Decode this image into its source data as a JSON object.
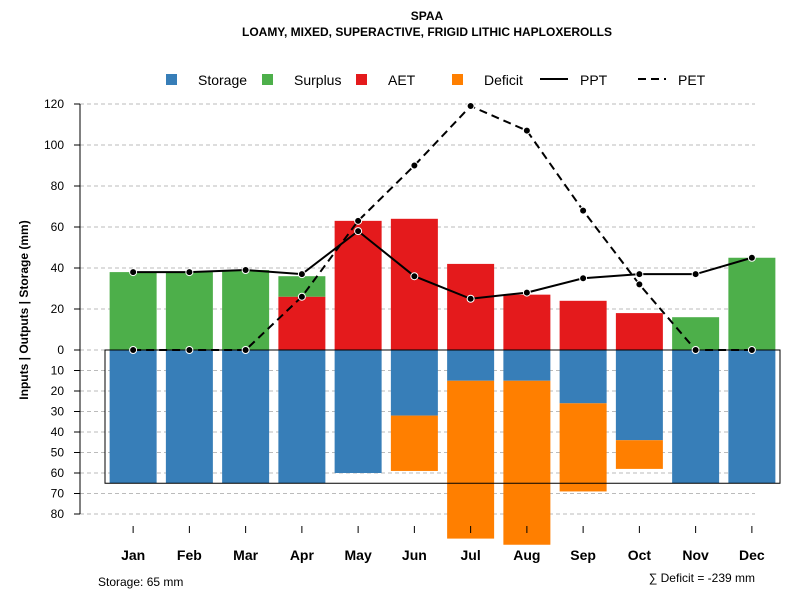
{
  "chart_data": {
    "type": "bar",
    "title": "SPAA",
    "subtitle": "LOAMY, MIXED, SUPERACTIVE, FRIGID LITHIC HAPLOXEROLLS",
    "ylabel": "Inputs | Outputs | Storage    (mm)",
    "ylim_upper": [
      0,
      120
    ],
    "ylim_lower": [
      0,
      80
    ],
    "yticks_upper": [
      0,
      20,
      40,
      60,
      80,
      100,
      120
    ],
    "yticks_lower": [
      10,
      20,
      30,
      40,
      50,
      60,
      70,
      80
    ],
    "categories": [
      "Jan",
      "Feb",
      "Mar",
      "Apr",
      "May",
      "Jun",
      "Jul",
      "Aug",
      "Sep",
      "Oct",
      "Nov",
      "Dec"
    ],
    "storage_capacity": 65,
    "series": [
      {
        "name": "Storage",
        "color": "#377EB8",
        "values": [
          65,
          65,
          65,
          65,
          60,
          32,
          15,
          15,
          26,
          44,
          65,
          65
        ]
      },
      {
        "name": "Surplus",
        "color": "#4DAF4A",
        "values": [
          38,
          38,
          39,
          10,
          0,
          0,
          0,
          0,
          0,
          0,
          16,
          45
        ]
      },
      {
        "name": "AET",
        "color": "#E41A1C",
        "values": [
          0,
          0,
          0,
          26,
          63,
          64,
          42,
          27,
          24,
          18,
          0,
          0
        ]
      },
      {
        "name": "Deficit",
        "color": "#FF7F00",
        "values": [
          0,
          0,
          0,
          0,
          0,
          27,
          77,
          80,
          43,
          14,
          0,
          0
        ]
      },
      {
        "name": "PPT",
        "style": "solid",
        "values": [
          38,
          38,
          39,
          37,
          58,
          36,
          25,
          28,
          35,
          37,
          37,
          45
        ]
      },
      {
        "name": "PET",
        "style": "dashed",
        "values": [
          0,
          0,
          0,
          26,
          63,
          90,
          119,
          107,
          68,
          32,
          0,
          0
        ]
      }
    ],
    "legend": [
      "Storage",
      "Surplus",
      "AET",
      "Deficit",
      "PPT",
      "PET"
    ],
    "storage_note": "Storage: 65 mm",
    "deficit_note": "∑ Deficit = -239 mm",
    "grid": true
  }
}
